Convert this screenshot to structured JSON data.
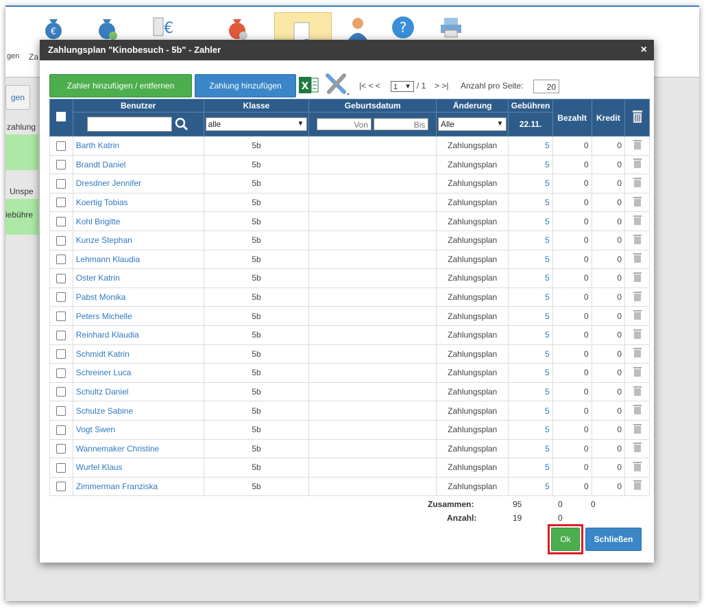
{
  "background": {
    "left_labels": [
      "gen",
      "Za"
    ],
    "left_button": "gen",
    "left_texts": [
      "zahlung",
      "Unspe",
      "iebühre"
    ]
  },
  "dialog": {
    "title": "Zahlungsplan \"Kinobesuch - 5b\" - Zahler",
    "close_icon": "×",
    "add_remove_payer": "Zahler hinzufügen / entfernen",
    "add_payment": "Zahlung hinzufügen",
    "pager": {
      "first_prev": "|< < <",
      "page": "1",
      "of_pages": "/ 1",
      "next_last": "> >|",
      "per_page_label": "Anzahl pro Seite:",
      "per_page_value": "20"
    },
    "columns": {
      "user": "Benutzer",
      "class": "Klasse",
      "birthdate": "Geburtsdatum",
      "change": "Änderung",
      "fees": "Gebühren",
      "fees_date": "22.11.",
      "paid": "Bezahlt",
      "credit": "Kredit"
    },
    "filters": {
      "class_select": "alle",
      "date_from": "Von",
      "date_to": "Bis",
      "change_select": "Alle"
    },
    "rows": [
      {
        "name": "Barth Katrin",
        "class": "5b",
        "change": "Zahlungsplan",
        "fee": "5",
        "paid": "0",
        "credit": "0"
      },
      {
        "name": "Brandt Daniel",
        "class": "5b",
        "change": "Zahlungsplan",
        "fee": "5",
        "paid": "0",
        "credit": "0"
      },
      {
        "name": "Dresdner Jennifer",
        "class": "5b",
        "change": "Zahlungsplan",
        "fee": "5",
        "paid": "0",
        "credit": "0"
      },
      {
        "name": "Koertig Tobias",
        "class": "5b",
        "change": "Zahlungsplan",
        "fee": "5",
        "paid": "0",
        "credit": "0"
      },
      {
        "name": "Kohl Brigitte",
        "class": "5b",
        "change": "Zahlungsplan",
        "fee": "5",
        "paid": "0",
        "credit": "0"
      },
      {
        "name": "Kunze Stephan",
        "class": "5b",
        "change": "Zahlungsplan",
        "fee": "5",
        "paid": "0",
        "credit": "0"
      },
      {
        "name": "Lehmann Klaudia",
        "class": "5b",
        "change": "Zahlungsplan",
        "fee": "5",
        "paid": "0",
        "credit": "0"
      },
      {
        "name": "Oster Katrin",
        "class": "5b",
        "change": "Zahlungsplan",
        "fee": "5",
        "paid": "0",
        "credit": "0"
      },
      {
        "name": "Pabst Monika",
        "class": "5b",
        "change": "Zahlungsplan",
        "fee": "5",
        "paid": "0",
        "credit": "0"
      },
      {
        "name": "Peters Michelle",
        "class": "5b",
        "change": "Zahlungsplan",
        "fee": "5",
        "paid": "0",
        "credit": "0"
      },
      {
        "name": "Reinhard Klaudia",
        "class": "5b",
        "change": "Zahlungsplan",
        "fee": "5",
        "paid": "0",
        "credit": "0"
      },
      {
        "name": "Schmidt Katrin",
        "class": "5b",
        "change": "Zahlungsplan",
        "fee": "5",
        "paid": "0",
        "credit": "0"
      },
      {
        "name": "Schreiner Luca",
        "class": "5b",
        "change": "Zahlungsplan",
        "fee": "5",
        "paid": "0",
        "credit": "0"
      },
      {
        "name": "Schultz Daniel",
        "class": "5b",
        "change": "Zahlungsplan",
        "fee": "5",
        "paid": "0",
        "credit": "0"
      },
      {
        "name": "Schulze Sabine",
        "class": "5b",
        "change": "Zahlungsplan",
        "fee": "5",
        "paid": "0",
        "credit": "0"
      },
      {
        "name": "Vogt Swen",
        "class": "5b",
        "change": "Zahlungsplan",
        "fee": "5",
        "paid": "0",
        "credit": "0"
      },
      {
        "name": "Wannemaker Christine",
        "class": "5b",
        "change": "Zahlungsplan",
        "fee": "5",
        "paid": "0",
        "credit": "0"
      },
      {
        "name": "Wurfel Klaus",
        "class": "5b",
        "change": "Zahlungsplan",
        "fee": "5",
        "paid": "0",
        "credit": "0"
      },
      {
        "name": "Zimmerman Franziska",
        "class": "5b",
        "change": "Zahlungsplan",
        "fee": "5",
        "paid": "0",
        "credit": "0"
      }
    ],
    "totals": {
      "sum_label": "Zusammen:",
      "sum_fee": "95",
      "sum_paid": "0",
      "sum_credit": "0",
      "count_label": "Anzahl:",
      "count_fee": "19",
      "count_paid": "0"
    },
    "ok_button": "Ok",
    "close_button": "Schließen"
  },
  "colors": {
    "header_blue": "#2e5c8a",
    "button_green": "#4cae4c",
    "button_blue": "#3a86c8",
    "highlight_red": "#e01b24",
    "link_blue": "#2f7ac0"
  }
}
